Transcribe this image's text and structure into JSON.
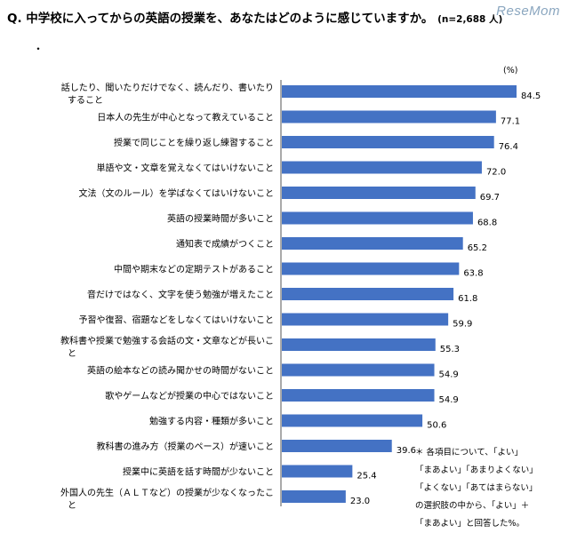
{
  "header": {
    "question": "Q. 中学校に入ってからの英語の授業を、あなたはどのように感じていますか。",
    "sample": "(n=2,688 人)",
    "dot": "・",
    "logo": "ReseMom"
  },
  "chart_data": {
    "type": "bar",
    "orientation": "horizontal",
    "unit_label": "(%)",
    "categories": [
      "話したり、聞いたりだけでなく、読んだり、書いたりすること",
      "日本人の先生が中心となって教えていること",
      "授業で同じことを繰り返し練習すること",
      "単語や文・文章を覚えなくてはいけないこと",
      "文法（文のルール）を学ばなくてはいけないこと",
      "英語の授業時間が多いこと",
      "通知表で成績がつくこと",
      "中間や期末などの定期テストがあること",
      "音だけではなく、文字を使う勉強が増えたこと",
      "予習や復習、宿題などをしなくてはいけないこと",
      "教科書や授業で勉強する会話の文・文章などが長いこと",
      "英語の絵本などの読み聞かせの時間がないこと",
      "歌やゲームなどが授業の中心ではないこと",
      "勉強する内容・種類が多いこと",
      "教科書の進み方（授業のペース）が速いこと",
      "授業中に英語を話す時間が少ないこと",
      "外国人の先生（ＡＬＴなど）の授業が少なくなったこと"
    ],
    "values": [
      84.5,
      77.1,
      76.4,
      72.0,
      69.7,
      68.8,
      65.2,
      63.8,
      61.8,
      59.9,
      55.3,
      54.9,
      54.9,
      50.6,
      39.6,
      25.4,
      23.0
    ],
    "value_labels": [
      "84.5",
      "77.1",
      "76.4",
      "72.0",
      "69.7",
      "68.8",
      "65.2",
      "63.8",
      "61.8",
      "59.9",
      "55.3",
      "54.9",
      "54.9",
      "50.6",
      "39.6",
      "25.4",
      "23.0"
    ],
    "xlim": [
      0,
      84.5
    ],
    "bar_color": "#4472c4"
  },
  "footnote": [
    "＊ 各項目について、「よい」",
    "「まあよい」「あまりよくない」",
    "「よくない」「あてはまらない」",
    "の選択肢の中から、「よい」＋",
    "「まあよい」と回答した%。"
  ]
}
